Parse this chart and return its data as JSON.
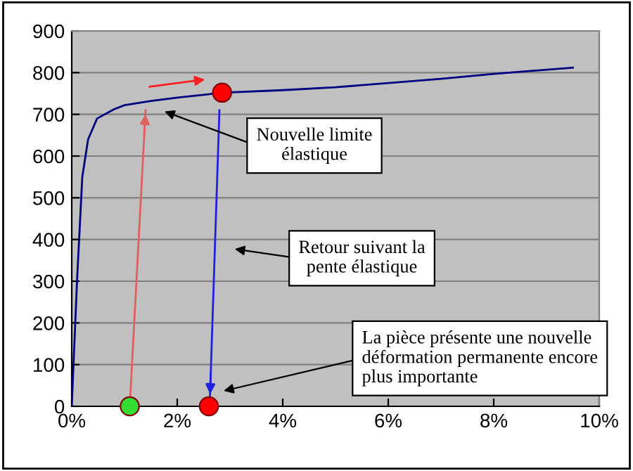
{
  "chart_data": {
    "type": "line",
    "xlim": [
      0,
      10
    ],
    "ylim": [
      0,
      900
    ],
    "xticks": [
      {
        "value": 0,
        "label": "0%"
      },
      {
        "value": 2,
        "label": "2%"
      },
      {
        "value": 4,
        "label": "4%"
      },
      {
        "value": 6,
        "label": "6%"
      },
      {
        "value": 8,
        "label": "8%"
      },
      {
        "value": 10,
        "label": "10%"
      }
    ],
    "yticks": [
      0,
      100,
      200,
      300,
      400,
      500,
      600,
      700,
      800,
      900
    ],
    "grid": "y",
    "marker": "none",
    "series": [
      {
        "color": "#000080",
        "x": [
          0,
          0.1,
          0.2,
          0.31,
          0.48,
          0.8,
          1.0,
          1.5,
          2.0,
          2.5,
          2.85,
          4.0,
          5.0,
          6.0,
          7.0,
          8.0,
          9.5
        ],
        "values": [
          0,
          300,
          550,
          640,
          690,
          712,
          722,
          732,
          740,
          747,
          752,
          758,
          765,
          775,
          785,
          797,
          812
        ]
      },
      {
        "color": "#e06060",
        "x": [
          1.1,
          1.4
        ],
        "values": [
          0,
          710
        ]
      },
      {
        "color": "#2020e0",
        "x": [
          2.8,
          2.62
        ],
        "values": [
          710,
          20
        ]
      },
      {
        "type": "scatter",
        "marker": "circle",
        "x": [
          2.85,
          1.1,
          2.6
        ],
        "values": [
          752,
          0,
          0
        ],
        "colors": [
          "#ff0000",
          "#33dd33",
          "#ff0000"
        ]
      }
    ],
    "annotations": [
      "Nouvelle limite\nélastique",
      "Retour suivant la\npente élastique",
      "La pièce présente une nouvelle\ndéformation permanente encore\nplus importante"
    ]
  }
}
